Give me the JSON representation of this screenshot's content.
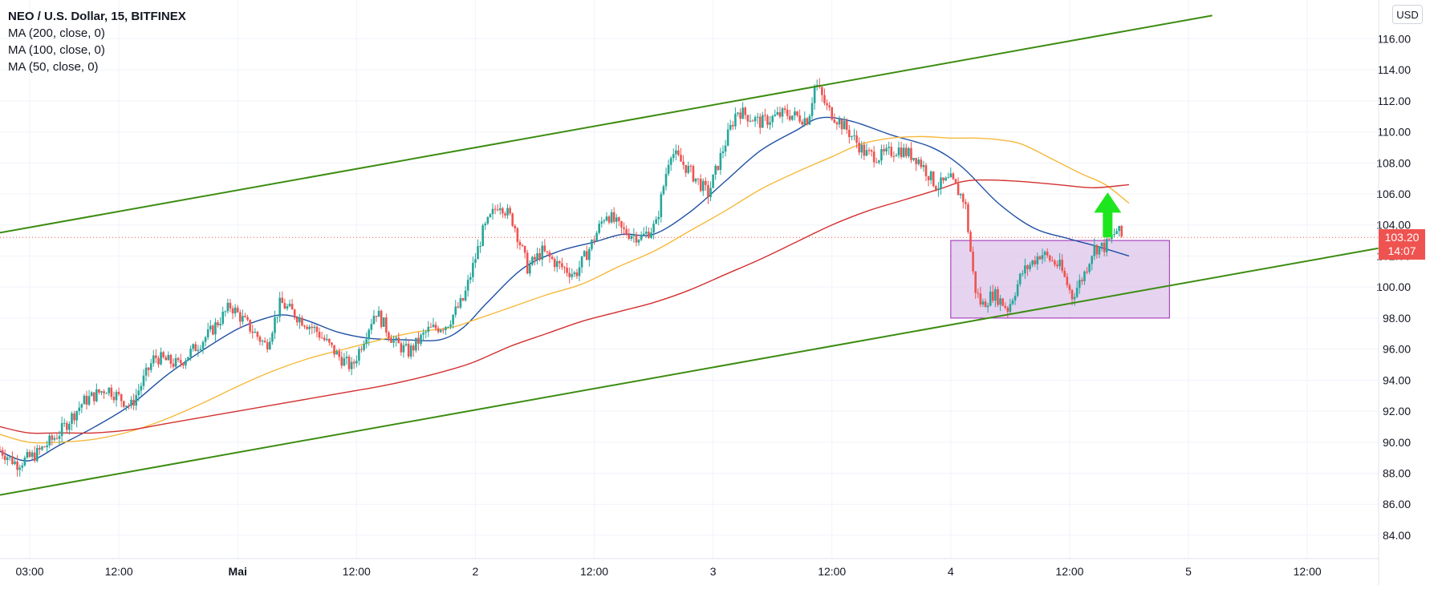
{
  "header": {
    "title": "NEO / U.S. Dollar, 15, BITFINEX",
    "indicators": [
      "MA (200, close, 0)",
      "MA (100, close, 0)",
      "MA (50, close, 0)"
    ]
  },
  "currency_button": "USD",
  "price_tag": {
    "price": "103.20",
    "countdown": "14:07"
  },
  "colors": {
    "up": "#26a69a",
    "down": "#ef5350",
    "ma50": "#1e4fa3",
    "ma100": "#f6b93b",
    "ma200": "#d32f2f",
    "channel": "#3c8c12",
    "zone_fill": "#dcc4ea",
    "zone_border": "#9c27b0",
    "arrow": "#1ee61e"
  },
  "chart_data": {
    "type": "candlestick",
    "symbol": "NEO / U.S. Dollar",
    "interval": "15",
    "exchange": "BITFINEX",
    "ylim": [
      82.5,
      118.5
    ],
    "y_ticks": [
      84,
      86,
      88,
      90,
      92,
      94,
      96,
      98,
      100,
      102,
      104,
      106,
      108,
      110,
      112,
      114,
      116
    ],
    "y_tick_labels": [
      "84.00",
      "86.00",
      "88.00",
      "90.00",
      "92.00",
      "94.00",
      "96.00",
      "98.00",
      "100.00",
      "102.00",
      "104.00",
      "106.00",
      "108.00",
      "110.00",
      "112.00",
      "114.00",
      "116.00"
    ],
    "x_range_days": [
      -1.0,
      4.8
    ],
    "x_ticks": [
      {
        "t": -0.875,
        "label": "03:00"
      },
      {
        "t": -0.5,
        "label": "12:00"
      },
      {
        "t": 0.0,
        "label": "Mai"
      },
      {
        "t": 0.5,
        "label": "12:00"
      },
      {
        "t": 1.0,
        "label": "2"
      },
      {
        "t": 1.5,
        "label": "12:00"
      },
      {
        "t": 2.0,
        "label": "3"
      },
      {
        "t": 2.5,
        "label": "12:00"
      },
      {
        "t": 3.0,
        "label": "4"
      },
      {
        "t": 3.5,
        "label": "12:00"
      },
      {
        "t": 4.0,
        "label": "5"
      },
      {
        "t": 4.5,
        "label": "12:00"
      }
    ],
    "current_price": 103.2,
    "price_path": [
      [
        -1.0,
        89.5
      ],
      [
        -0.93,
        88.6
      ],
      [
        -0.85,
        89.2
      ],
      [
        -0.75,
        90.6
      ],
      [
        -0.65,
        92.6
      ],
      [
        -0.55,
        93.5
      ],
      [
        -0.45,
        92.3
      ],
      [
        -0.35,
        95.5
      ],
      [
        -0.25,
        95.0
      ],
      [
        -0.12,
        97.0
      ],
      [
        -0.03,
        98.8
      ],
      [
        0.05,
        97.4
      ],
      [
        0.12,
        96.2
      ],
      [
        0.18,
        99.0
      ],
      [
        0.26,
        98.0
      ],
      [
        0.33,
        97.2
      ],
      [
        0.42,
        95.6
      ],
      [
        0.48,
        94.8
      ],
      [
        0.58,
        98.5
      ],
      [
        0.66,
        96.4
      ],
      [
        0.72,
        95.8
      ],
      [
        0.8,
        97.2
      ],
      [
        0.88,
        97.6
      ],
      [
        0.95,
        99.2
      ],
      [
        1.03,
        103.5
      ],
      [
        1.1,
        105.5
      ],
      [
        1.16,
        104.2
      ],
      [
        1.22,
        101.2
      ],
      [
        1.28,
        102.3
      ],
      [
        1.35,
        101.4
      ],
      [
        1.42,
        100.8
      ],
      [
        1.48,
        102.5
      ],
      [
        1.55,
        104.8
      ],
      [
        1.62,
        103.6
      ],
      [
        1.7,
        103.2
      ],
      [
        1.76,
        104.0
      ],
      [
        1.82,
        108.8
      ],
      [
        1.9,
        107.5
      ],
      [
        1.98,
        106.0
      ],
      [
        2.04,
        108.8
      ],
      [
        2.1,
        111.4
      ],
      [
        2.2,
        110.6
      ],
      [
        2.3,
        111.2
      ],
      [
        2.4,
        110.8
      ],
      [
        2.43,
        113.2
      ],
      [
        2.48,
        111.5
      ],
      [
        2.56,
        110.2
      ],
      [
        2.64,
        108.6
      ],
      [
        2.7,
        108.4
      ],
      [
        2.78,
        108.9
      ],
      [
        2.86,
        108.3
      ],
      [
        2.94,
        106.5
      ],
      [
        3.0,
        106.9
      ],
      [
        3.06,
        105.5
      ],
      [
        3.1,
        100.0
      ],
      [
        3.13,
        98.8
      ],
      [
        3.18,
        99.6
      ],
      [
        3.24,
        98.6
      ],
      [
        3.3,
        100.9
      ],
      [
        3.38,
        102.2
      ],
      [
        3.46,
        101.3
      ],
      [
        3.51,
        99.4
      ],
      [
        3.56,
        100.8
      ],
      [
        3.6,
        102.5
      ],
      [
        3.65,
        102.6
      ],
      [
        3.7,
        103.7
      ],
      [
        3.72,
        103.2
      ]
    ],
    "series": [
      {
        "name": "MA (50, close, 0)",
        "color": "#1e4fa3",
        "points": [
          [
            -1.0,
            89.4
          ],
          [
            -0.88,
            88.8
          ],
          [
            -0.75,
            89.8
          ],
          [
            -0.6,
            91.0
          ],
          [
            -0.45,
            92.4
          ],
          [
            -0.3,
            94.3
          ],
          [
            -0.15,
            95.9
          ],
          [
            0.0,
            97.3
          ],
          [
            0.12,
            98.0
          ],
          [
            0.2,
            98.2
          ],
          [
            0.3,
            97.8
          ],
          [
            0.42,
            97.1
          ],
          [
            0.55,
            96.7
          ],
          [
            0.7,
            96.6
          ],
          [
            0.85,
            96.6
          ],
          [
            0.95,
            97.4
          ],
          [
            1.05,
            99.0
          ],
          [
            1.2,
            101.2
          ],
          [
            1.35,
            102.3
          ],
          [
            1.5,
            102.9
          ],
          [
            1.62,
            103.4
          ],
          [
            1.75,
            103.4
          ],
          [
            1.9,
            104.8
          ],
          [
            2.05,
            106.8
          ],
          [
            2.2,
            108.8
          ],
          [
            2.35,
            110.1
          ],
          [
            2.45,
            110.9
          ],
          [
            2.58,
            110.7
          ],
          [
            2.75,
            109.8
          ],
          [
            2.92,
            109.0
          ],
          [
            3.05,
            107.7
          ],
          [
            3.2,
            105.4
          ],
          [
            3.35,
            103.8
          ],
          [
            3.5,
            103.1
          ],
          [
            3.62,
            102.6
          ],
          [
            3.75,
            102.0
          ]
        ]
      },
      {
        "name": "MA (100, close, 0)",
        "color": "#f6b93b",
        "points": [
          [
            -1.0,
            90.5
          ],
          [
            -0.88,
            90.0
          ],
          [
            -0.75,
            90.0
          ],
          [
            -0.6,
            90.2
          ],
          [
            -0.45,
            90.7
          ],
          [
            -0.3,
            91.5
          ],
          [
            -0.15,
            92.5
          ],
          [
            0.0,
            93.6
          ],
          [
            0.15,
            94.6
          ],
          [
            0.3,
            95.4
          ],
          [
            0.45,
            96.0
          ],
          [
            0.6,
            96.6
          ],
          [
            0.75,
            97.1
          ],
          [
            0.9,
            97.4
          ],
          [
            1.0,
            97.9
          ],
          [
            1.15,
            98.7
          ],
          [
            1.3,
            99.5
          ],
          [
            1.45,
            100.2
          ],
          [
            1.6,
            101.3
          ],
          [
            1.75,
            102.3
          ],
          [
            1.9,
            103.6
          ],
          [
            2.05,
            104.9
          ],
          [
            2.2,
            106.3
          ],
          [
            2.35,
            107.4
          ],
          [
            2.5,
            108.4
          ],
          [
            2.62,
            109.2
          ],
          [
            2.75,
            109.6
          ],
          [
            2.88,
            109.7
          ],
          [
            3.0,
            109.6
          ],
          [
            3.1,
            109.6
          ],
          [
            3.2,
            109.5
          ],
          [
            3.3,
            109.2
          ],
          [
            3.42,
            108.3
          ],
          [
            3.55,
            107.3
          ],
          [
            3.65,
            106.6
          ],
          [
            3.75,
            105.4
          ]
        ]
      },
      {
        "name": "MA (200, close, 0)",
        "color": "#d32f2f",
        "points": [
          [
            -1.0,
            91.0
          ],
          [
            -0.88,
            90.6
          ],
          [
            -0.75,
            90.6
          ],
          [
            -0.6,
            90.6
          ],
          [
            -0.45,
            90.8
          ],
          [
            -0.3,
            91.2
          ],
          [
            -0.15,
            91.6
          ],
          [
            0.0,
            92.0
          ],
          [
            0.15,
            92.4
          ],
          [
            0.3,
            92.8
          ],
          [
            0.45,
            93.2
          ],
          [
            0.6,
            93.6
          ],
          [
            0.75,
            94.1
          ],
          [
            0.9,
            94.7
          ],
          [
            1.0,
            95.2
          ],
          [
            1.15,
            96.2
          ],
          [
            1.3,
            97.0
          ],
          [
            1.45,
            97.8
          ],
          [
            1.6,
            98.4
          ],
          [
            1.75,
            99.0
          ],
          [
            1.9,
            99.8
          ],
          [
            2.05,
            100.8
          ],
          [
            2.2,
            101.8
          ],
          [
            2.35,
            102.9
          ],
          [
            2.5,
            104.0
          ],
          [
            2.65,
            104.9
          ],
          [
            2.8,
            105.6
          ],
          [
            2.95,
            106.3
          ],
          [
            3.05,
            106.8
          ],
          [
            3.15,
            106.9
          ],
          [
            3.3,
            106.8
          ],
          [
            3.45,
            106.6
          ],
          [
            3.6,
            106.4
          ],
          [
            3.75,
            106.6
          ]
        ]
      }
    ],
    "drawings": {
      "channel_upper": [
        [
          -1.0,
          103.5
        ],
        [
          4.1,
          117.5
        ]
      ],
      "channel_lower": [
        [
          -1.0,
          86.6
        ],
        [
          4.8,
          102.5
        ]
      ],
      "support_zone": {
        "t0": 3.0,
        "t1": 3.92,
        "y0": 98.0,
        "y1": 103.0
      },
      "arrow": {
        "t": 3.66,
        "y_base": 103.2,
        "y_tip": 106.1
      }
    }
  }
}
